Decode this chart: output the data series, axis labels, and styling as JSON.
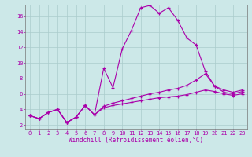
{
  "xlabel": "Windchill (Refroidissement éolien,°C)",
  "background_color": "#cce8e8",
  "grid_color": "#aacccc",
  "line_color": "#aa00aa",
  "xlim": [
    -0.5,
    23.5
  ],
  "ylim": [
    1.5,
    17.5
  ],
  "xticks": [
    0,
    1,
    2,
    3,
    4,
    5,
    6,
    7,
    8,
    9,
    10,
    11,
    12,
    13,
    14,
    15,
    16,
    17,
    18,
    19,
    20,
    21,
    22,
    23
  ],
  "yticks": [
    2,
    4,
    6,
    8,
    10,
    12,
    14,
    16
  ],
  "series1_x": [
    0,
    1,
    2,
    3,
    4,
    5,
    6,
    7,
    8,
    9,
    10,
    11,
    12,
    13,
    14,
    15,
    16,
    17,
    18,
    19,
    20,
    21,
    22,
    23
  ],
  "series1_y": [
    3.2,
    2.8,
    3.6,
    4.0,
    2.3,
    3.0,
    4.5,
    3.3,
    9.3,
    6.8,
    11.8,
    14.2,
    17.1,
    17.4,
    16.4,
    17.1,
    15.5,
    13.2,
    12.3,
    8.9,
    7.0,
    6.2,
    6.0,
    6.3
  ],
  "series2_x": [
    0,
    1,
    2,
    3,
    4,
    5,
    6,
    7,
    8,
    9,
    10,
    11,
    12,
    13,
    14,
    15,
    16,
    17,
    18,
    19,
    20,
    21,
    22,
    23
  ],
  "series2_y": [
    3.2,
    2.8,
    3.6,
    4.0,
    2.3,
    3.0,
    4.5,
    3.3,
    4.4,
    4.8,
    5.1,
    5.4,
    5.7,
    6.0,
    6.2,
    6.5,
    6.7,
    7.1,
    7.8,
    8.6,
    7.0,
    6.5,
    6.2,
    6.5
  ],
  "series3_x": [
    0,
    1,
    2,
    3,
    4,
    5,
    6,
    7,
    8,
    9,
    10,
    11,
    12,
    13,
    14,
    15,
    16,
    17,
    18,
    19,
    20,
    21,
    22,
    23
  ],
  "series3_y": [
    3.2,
    2.8,
    3.6,
    4.0,
    2.3,
    3.0,
    4.5,
    3.3,
    4.2,
    4.5,
    4.7,
    4.9,
    5.1,
    5.3,
    5.5,
    5.6,
    5.7,
    5.9,
    6.2,
    6.5,
    6.3,
    6.0,
    5.8,
    6.0
  ],
  "tick_fontsize": 5,
  "xlabel_fontsize": 5.5
}
